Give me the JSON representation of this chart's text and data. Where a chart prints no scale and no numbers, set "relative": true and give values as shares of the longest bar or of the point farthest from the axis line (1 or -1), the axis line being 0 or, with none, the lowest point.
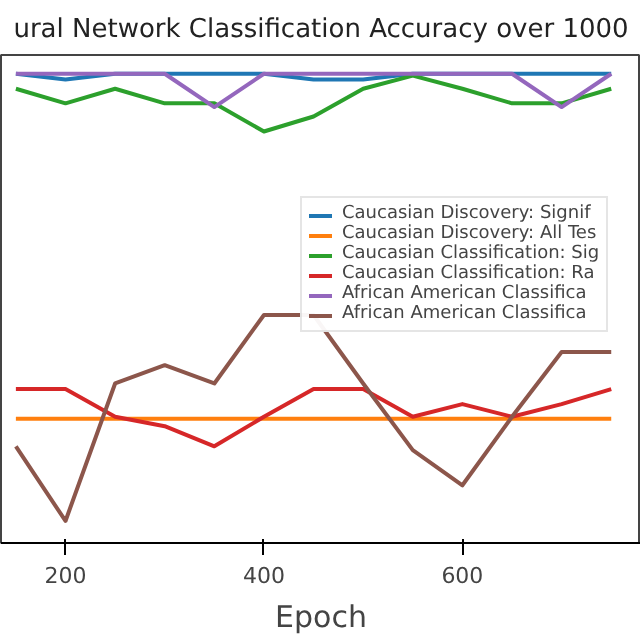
{
  "chart_data": {
    "type": "line",
    "title": "ural Network Classification Accuracy over 1000",
    "xlabel": "Epoch",
    "x": [
      150,
      200,
      250,
      300,
      350,
      400,
      450,
      500,
      550,
      600,
      650,
      700,
      750
    ],
    "xlim": [
      135,
      780
    ],
    "xticks": [
      200,
      400,
      600
    ],
    "relative": true,
    "legend": "top right",
    "grid": false,
    "line_style": "solid",
    "series": [
      {
        "name": "Caucasian Discovery: Signif",
        "color": "#1f77b4",
        "values": [
          1.0,
          0.988,
          1.0,
          1.0,
          1.0,
          1.0,
          0.988,
          0.988,
          1.0,
          1.0,
          1.0,
          1.0,
          1.0
        ]
      },
      {
        "name": "Caucasian Discovery: All Tes",
        "color": "#ff7f0e",
        "values": [
          0.265,
          0.265,
          0.265,
          0.265,
          0.265,
          0.265,
          0.265,
          0.265,
          0.265,
          0.265,
          0.265,
          0.265,
          0.265
        ]
      },
      {
        "name": "Caucasian Classification: Sig",
        "color": "#2ca02c",
        "values": [
          0.968,
          0.937,
          0.968,
          0.937,
          0.937,
          0.877,
          0.909,
          0.968,
          0.996,
          0.968,
          0.937,
          0.937,
          0.968
        ]
      },
      {
        "name": "Caucasian Classification: Ra",
        "color": "#d62728",
        "values": [
          0.328,
          0.328,
          0.269,
          0.249,
          0.206,
          0.269,
          0.328,
          0.328,
          0.269,
          0.296,
          0.269,
          0.296,
          0.328
        ]
      },
      {
        "name": "African American Classifica",
        "color": "#9467bd",
        "values": [
          1.0,
          1.0,
          1.0,
          1.0,
          0.929,
          1.0,
          1.0,
          1.0,
          1.0,
          1.0,
          1.0,
          0.929,
          1.0
        ]
      },
      {
        "name": "African American Classifica",
        "color": "#8c564b",
        "values": [
          0.206,
          0.047,
          0.34,
          0.379,
          0.34,
          0.486,
          0.486,
          0.34,
          0.198,
          0.123,
          0.269,
          0.407,
          0.407
        ]
      }
    ]
  }
}
